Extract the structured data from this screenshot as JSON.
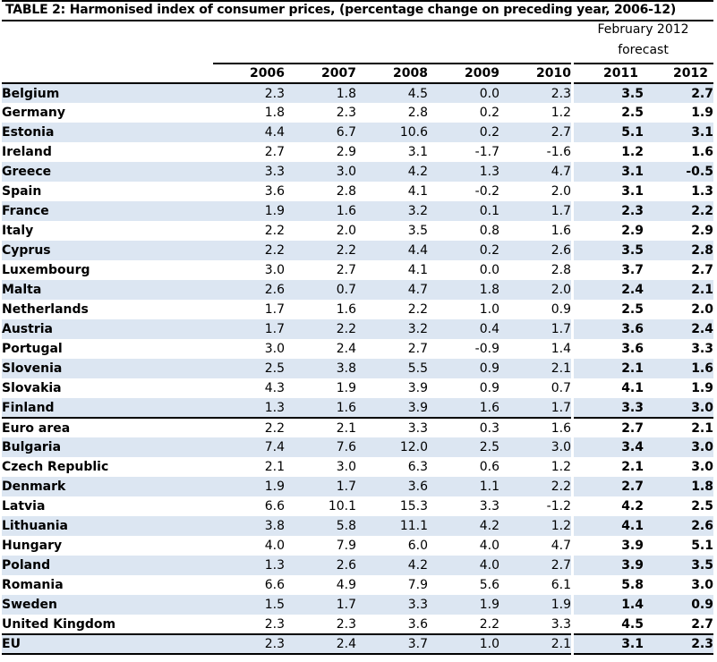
{
  "title": "TABLE 2: Harmonised index of consumer prices, (percentage change on preceding year, 2006-12)",
  "forecast_header": {
    "line1": "February 2012",
    "line2": "forecast"
  },
  "columns": [
    "2006",
    "2007",
    "2008",
    "2009",
    "2010",
    "2011",
    "2012"
  ],
  "rows": [
    {
      "name": "Belgium",
      "v": [
        "2.3",
        "1.8",
        "4.5",
        "0.0",
        "2.3"
      ],
      "f": [
        "3.5",
        "2.7"
      ]
    },
    {
      "name": "Germany",
      "v": [
        "1.8",
        "2.3",
        "2.8",
        "0.2",
        "1.2"
      ],
      "f": [
        "2.5",
        "1.9"
      ]
    },
    {
      "name": "Estonia",
      "v": [
        "4.4",
        "6.7",
        "10.6",
        "0.2",
        "2.7"
      ],
      "f": [
        "5.1",
        "3.1"
      ]
    },
    {
      "name": "Ireland",
      "v": [
        "2.7",
        "2.9",
        "3.1",
        "-1.7",
        "-1.6"
      ],
      "f": [
        "1.2",
        "1.6"
      ]
    },
    {
      "name": "Greece",
      "v": [
        "3.3",
        "3.0",
        "4.2",
        "1.3",
        "4.7"
      ],
      "f": [
        "3.1",
        "-0.5"
      ]
    },
    {
      "name": "Spain",
      "v": [
        "3.6",
        "2.8",
        "4.1",
        "-0.2",
        "2.0"
      ],
      "f": [
        "3.1",
        "1.3"
      ]
    },
    {
      "name": "France",
      "v": [
        "1.9",
        "1.6",
        "3.2",
        "0.1",
        "1.7"
      ],
      "f": [
        "2.3",
        "2.2"
      ]
    },
    {
      "name": "Italy",
      "v": [
        "2.2",
        "2.0",
        "3.5",
        "0.8",
        "1.6"
      ],
      "f": [
        "2.9",
        "2.9"
      ]
    },
    {
      "name": "Cyprus",
      "v": [
        "2.2",
        "2.2",
        "4.4",
        "0.2",
        "2.6"
      ],
      "f": [
        "3.5",
        "2.8"
      ]
    },
    {
      "name": "Luxembourg",
      "v": [
        "3.0",
        "2.7",
        "4.1",
        "0.0",
        "2.8"
      ],
      "f": [
        "3.7",
        "2.7"
      ]
    },
    {
      "name": "Malta",
      "v": [
        "2.6",
        "0.7",
        "4.7",
        "1.8",
        "2.0"
      ],
      "f": [
        "2.4",
        "2.1"
      ]
    },
    {
      "name": "Netherlands",
      "v": [
        "1.7",
        "1.6",
        "2.2",
        "1.0",
        "0.9"
      ],
      "f": [
        "2.5",
        "2.0"
      ]
    },
    {
      "name": "Austria",
      "v": [
        "1.7",
        "2.2",
        "3.2",
        "0.4",
        "1.7"
      ],
      "f": [
        "3.6",
        "2.4"
      ]
    },
    {
      "name": "Portugal",
      "v": [
        "3.0",
        "2.4",
        "2.7",
        "-0.9",
        "1.4"
      ],
      "f": [
        "3.6",
        "3.3"
      ]
    },
    {
      "name": "Slovenia",
      "v": [
        "2.5",
        "3.8",
        "5.5",
        "0.9",
        "2.1"
      ],
      "f": [
        "2.1",
        "1.6"
      ]
    },
    {
      "name": "Slovakia",
      "v": [
        "4.3",
        "1.9",
        "3.9",
        "0.9",
        "0.7"
      ],
      "f": [
        "4.1",
        "1.9"
      ]
    },
    {
      "name": "Finland",
      "v": [
        "1.3",
        "1.6",
        "3.9",
        "1.6",
        "1.7"
      ],
      "f": [
        "3.3",
        "3.0"
      ]
    },
    {
      "name": "Euro area",
      "v": [
        "2.2",
        "2.1",
        "3.3",
        "0.3",
        "1.6"
      ],
      "f": [
        "2.7",
        "2.1"
      ]
    },
    {
      "name": "Bulgaria",
      "v": [
        "7.4",
        "7.6",
        "12.0",
        "2.5",
        "3.0"
      ],
      "f": [
        "3.4",
        "3.0"
      ]
    },
    {
      "name": "Czech Republic",
      "v": [
        "2.1",
        "3.0",
        "6.3",
        "0.6",
        "1.2"
      ],
      "f": [
        "2.1",
        "3.0"
      ]
    },
    {
      "name": "Denmark",
      "v": [
        "1.9",
        "1.7",
        "3.6",
        "1.1",
        "2.2"
      ],
      "f": [
        "2.7",
        "1.8"
      ]
    },
    {
      "name": "Latvia",
      "v": [
        "6.6",
        "10.1",
        "15.3",
        "3.3",
        "-1.2"
      ],
      "f": [
        "4.2",
        "2.5"
      ]
    },
    {
      "name": "Lithuania",
      "v": [
        "3.8",
        "5.8",
        "11.1",
        "4.2",
        "1.2"
      ],
      "f": [
        "4.1",
        "2.6"
      ]
    },
    {
      "name": "Hungary",
      "v": [
        "4.0",
        "7.9",
        "6.0",
        "4.0",
        "4.7"
      ],
      "f": [
        "3.9",
        "5.1"
      ]
    },
    {
      "name": "Poland",
      "v": [
        "1.3",
        "2.6",
        "4.2",
        "4.0",
        "2.7"
      ],
      "f": [
        "3.9",
        "3.5"
      ]
    },
    {
      "name": "Romania",
      "v": [
        "6.6",
        "4.9",
        "7.9",
        "5.6",
        "6.1"
      ],
      "f": [
        "5.8",
        "3.0"
      ]
    },
    {
      "name": "Sweden",
      "v": [
        "1.5",
        "1.7",
        "3.3",
        "1.9",
        "1.9"
      ],
      "f": [
        "1.4",
        "0.9"
      ]
    },
    {
      "name": "United Kingdom",
      "v": [
        "2.3",
        "2.3",
        "3.6",
        "2.2",
        "3.3"
      ],
      "f": [
        "4.5",
        "2.7"
      ]
    },
    {
      "name": "EU",
      "v": [
        "2.3",
        "2.4",
        "3.7",
        "1.0",
        "2.1"
      ],
      "f": [
        "3.1",
        "2.3"
      ]
    }
  ],
  "colors": {
    "shade": "#dce6f2",
    "rule": "#000000"
  }
}
